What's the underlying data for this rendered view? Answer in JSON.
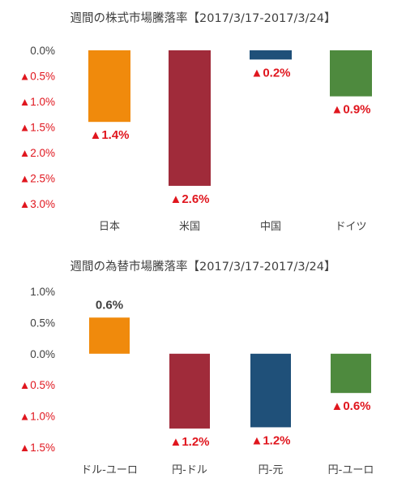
{
  "colors": {
    "japan": "#f08a0c",
    "usa": "#a02b3a",
    "china": "#1f5079",
    "germany": "#4e8a3e",
    "negative_label": "#e0161e",
    "positive_label": "#404040",
    "axis_text": "#404040"
  },
  "chart_data": [
    {
      "type": "bar",
      "title": "週間の株式市場騰落率【2017/3/17-2017/3/24】",
      "categories": [
        "日本",
        "米国",
        "中国",
        "ドイツ"
      ],
      "values": [
        -1.4,
        -2.65,
        -0.18,
        -0.9
      ],
      "data_labels": [
        "▲1.4%",
        "▲2.6%",
        "▲0.2%",
        "▲0.9%"
      ],
      "ylim": [
        -3.0,
        0.0
      ],
      "yticks": [
        0.0,
        -0.5,
        -1.0,
        -1.5,
        -2.0,
        -2.5,
        -3.0
      ],
      "ytick_labels": [
        "0.0%",
        "▲0.5%",
        "▲1.0%",
        "▲1.5%",
        "▲2.0%",
        "▲2.5%",
        "▲3.0%"
      ],
      "grid": false,
      "xlabel": "",
      "ylabel": ""
    },
    {
      "type": "bar",
      "title": "週間の為替市場騰落率【2017/3/17-2017/3/24】",
      "categories": [
        "ドル-ユーロ",
        "円-ドル",
        "円-元",
        "円-ユーロ"
      ],
      "values": [
        0.58,
        -1.2,
        -1.18,
        -0.63
      ],
      "data_labels": [
        "0.6%",
        "▲1.2%",
        "▲1.2%",
        "▲0.6%"
      ],
      "ylim": [
        -1.5,
        1.0
      ],
      "yticks": [
        1.0,
        0.5,
        0.0,
        -0.5,
        -1.0,
        -1.5
      ],
      "ytick_labels": [
        "1.0%",
        "0.5%",
        "0.0%",
        "▲0.5%",
        "▲1.0%",
        "▲1.5%"
      ],
      "grid": false,
      "xlabel": "",
      "ylabel": ""
    }
  ]
}
